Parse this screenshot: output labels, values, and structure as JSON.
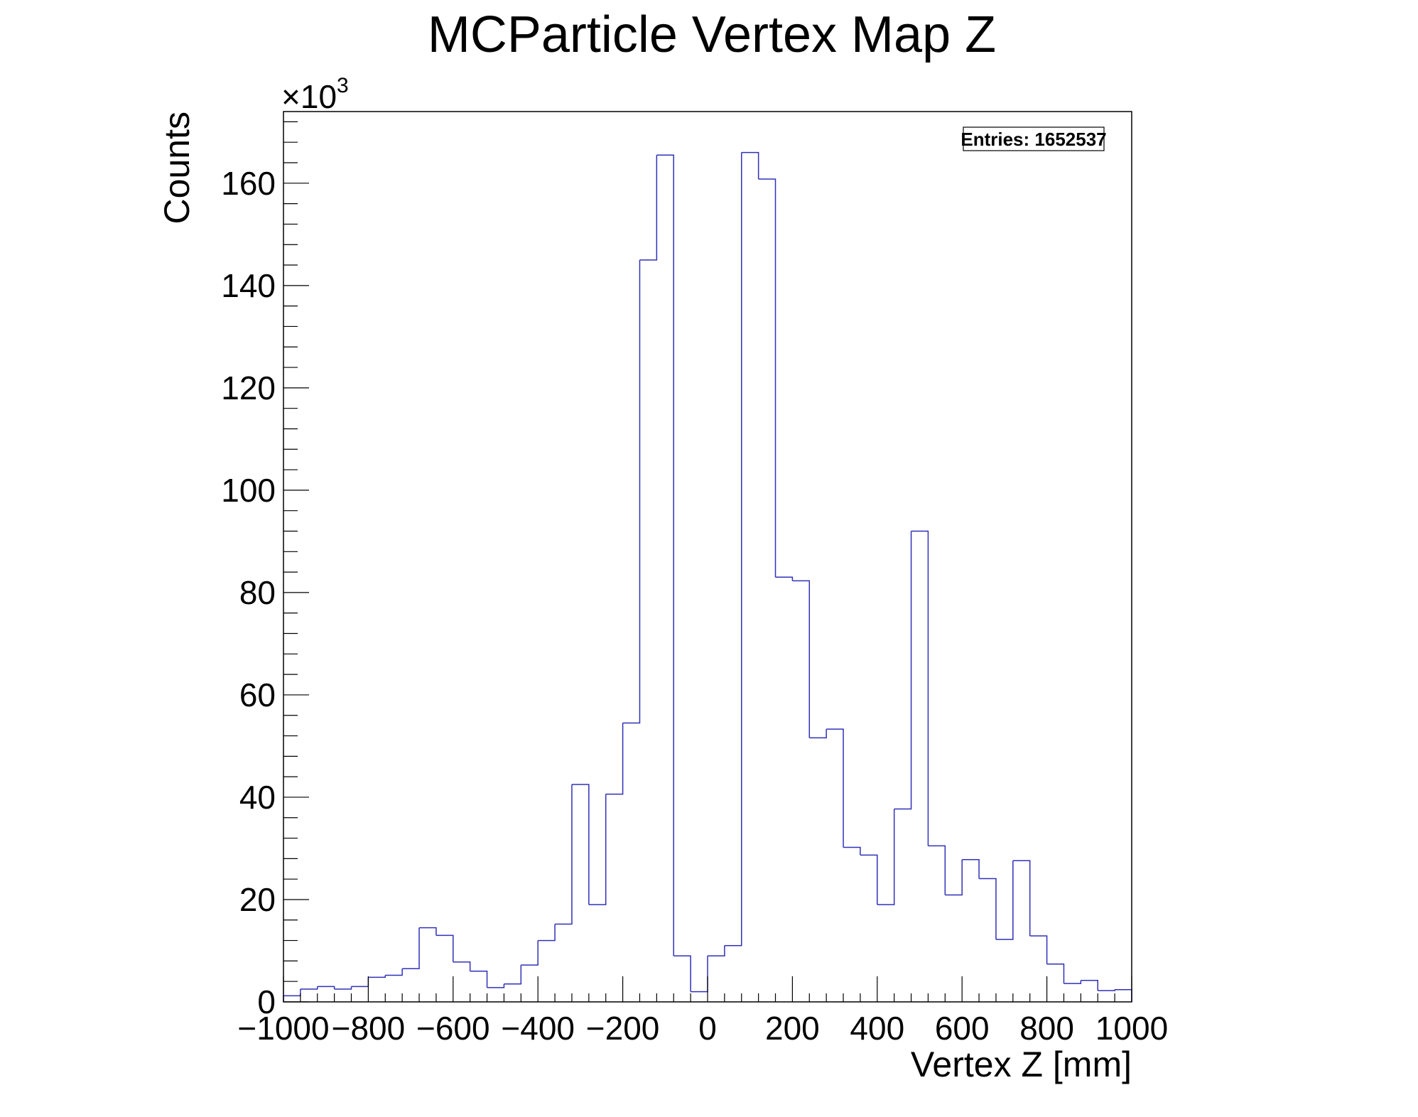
{
  "chart_data": {
    "type": "bar",
    "title": "MCParticle Vertex Map Z",
    "xlabel": "Vertex Z [mm]",
    "ylabel": "Counts",
    "y_multiplier_label": "×10",
    "y_multiplier_exponent": "3",
    "stats_box": "Entries: 1652537",
    "xlim": [
      -1000,
      1000
    ],
    "ylim": [
      0,
      174
    ],
    "x_ticks": [
      -1000,
      -800,
      -600,
      -400,
      -200,
      0,
      200,
      400,
      600,
      800,
      1000
    ],
    "x_tick_labels": [
      "−1000",
      "−800",
      "−600",
      "−400",
      "−200",
      "0",
      "200",
      "400",
      "600",
      "800",
      "1000"
    ],
    "y_ticks": [
      0,
      20,
      40,
      60,
      80,
      100,
      120,
      140,
      160
    ],
    "y_tick_labels": [
      "0",
      "20",
      "40",
      "60",
      "80",
      "100",
      "120",
      "140",
      "160"
    ],
    "bin_width": 40,
    "series": [
      {
        "bin_low_edges": [
          -1000,
          -960,
          -920,
          -880,
          -840,
          -800,
          -760,
          -720,
          -680,
          -640,
          -600,
          -560,
          -520,
          -480,
          -440,
          -400,
          -360,
          -320,
          -280,
          -240,
          -200,
          -160,
          -120,
          -80,
          -40,
          0,
          40,
          80,
          120,
          160,
          200,
          240,
          280,
          320,
          360,
          400,
          440,
          480,
          520,
          560,
          600,
          640,
          680,
          720,
          760,
          800,
          840,
          880,
          920,
          960
        ],
        "values": [
          1.2,
          2.5,
          3.0,
          2.5,
          3.0,
          4.8,
          5.2,
          6.5,
          14.5,
          13.0,
          7.8,
          6.0,
          2.8,
          3.5,
          7.2,
          12.0,
          15.2,
          42.5,
          19.0,
          40.6,
          54.5,
          145.0,
          165.5,
          9.0,
          2.0,
          9.0,
          11.0,
          166.0,
          160.8,
          83.0,
          82.3,
          51.6,
          53.3,
          30.2,
          28.7,
          19.0,
          37.7,
          92.0,
          30.5,
          20.9,
          27.8,
          24.1,
          12.2,
          27.6,
          12.9,
          7.4,
          3.6,
          4.2,
          2.2,
          2.4
        ]
      }
    ],
    "line_color": "#3030b8",
    "grid": false
  }
}
